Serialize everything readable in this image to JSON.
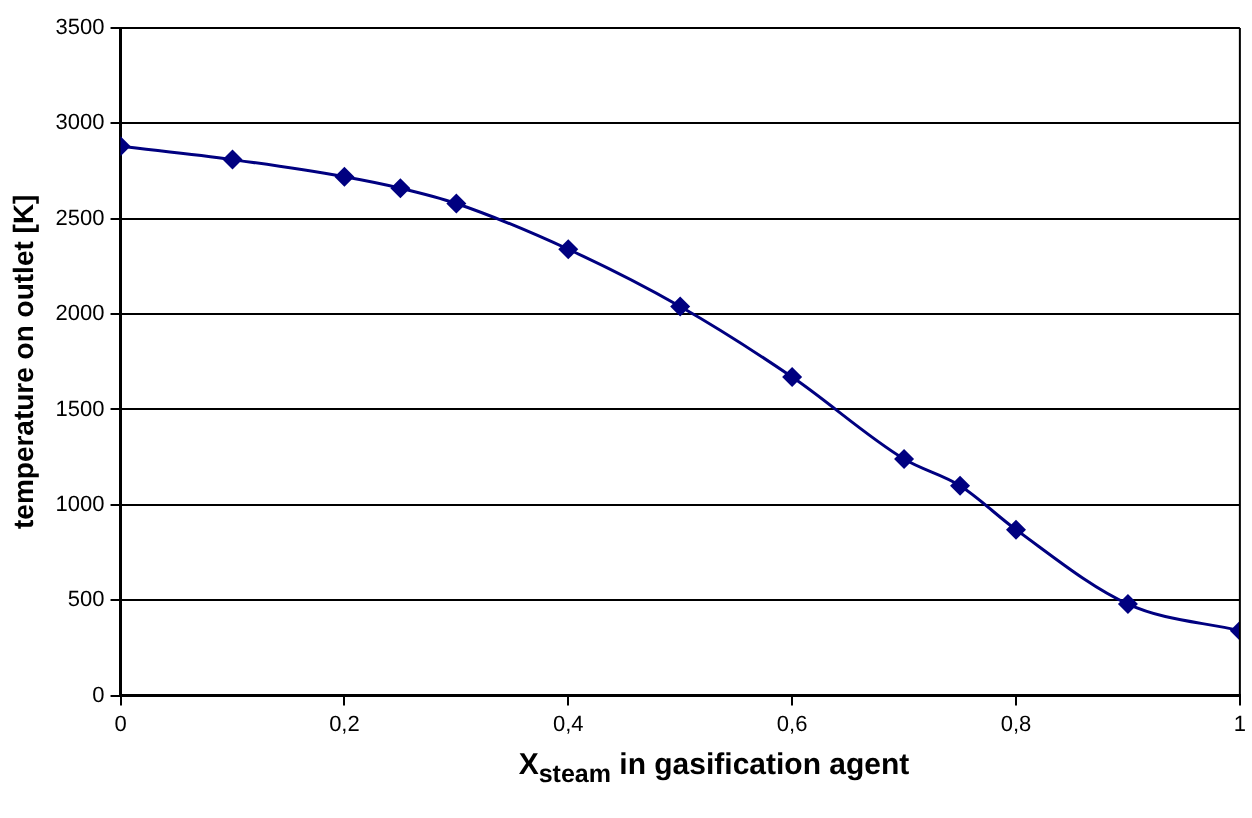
{
  "chart_data": {
    "type": "line",
    "xlabel": "X$_{steam}$ in gasification agent",
    "ylabel": "temperature on outlet [K]",
    "x": [
      0,
      0.1,
      0.2,
      0.25,
      0.3,
      0.4,
      0.5,
      0.6,
      0.7,
      0.75,
      0.8,
      0.9,
      1
    ],
    "series": [
      {
        "color": "#000080",
        "values": [
          2880,
          2810,
          2720,
          2660,
          2580,
          2340,
          2040,
          1670,
          1240,
          1100,
          870,
          480,
          340
        ]
      }
    ],
    "xlim": [
      0,
      1
    ],
    "xticks": [
      0,
      {
        "value": 0.2,
        "label": "0,2"
      },
      {
        "value": 0.4,
        "label": "0,4"
      },
      {
        "value": 0.6,
        "label": "0,6"
      },
      {
        "value": 0.8,
        "label": "0,8"
      },
      1
    ],
    "ylim": [
      0,
      3500
    ],
    "yticks": [
      0,
      500,
      1000,
      1500,
      2000,
      2500,
      3000,
      3500
    ],
    "grid": "y",
    "legend": false,
    "marker": "diamond",
    "line_style": "solid"
  }
}
